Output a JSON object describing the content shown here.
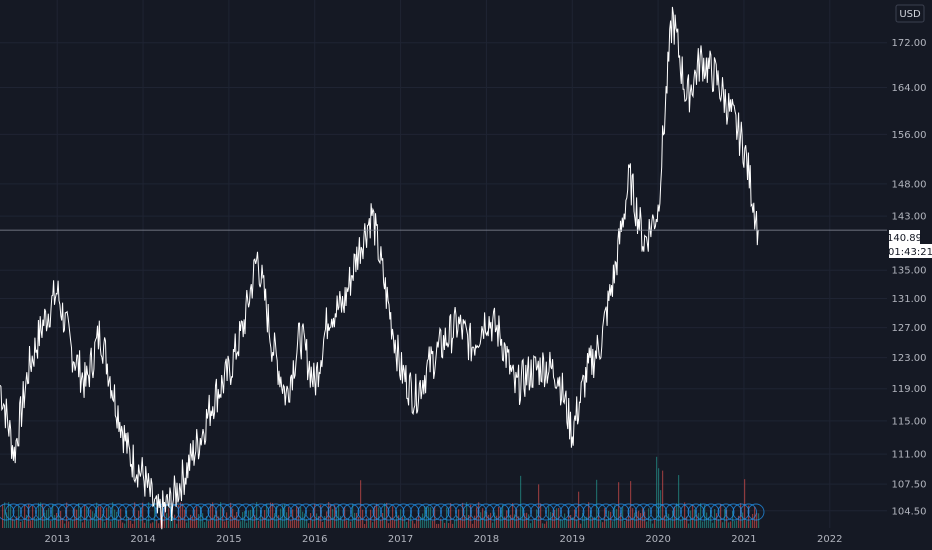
{
  "currency": "USD",
  "current_price_label": "140.89",
  "countdown_label": "01:43:21",
  "colors": {
    "background": "#151924",
    "price_line": "#ffffff",
    "volume_up": "#26a69a",
    "volume_down": "#ef5350",
    "event_circle": "#2196f3"
  },
  "chart_data": {
    "type": "line",
    "title": "",
    "xlabel": "",
    "ylabel": "",
    "y_scale": "log",
    "grid": true,
    "x_range": [
      "2012-05",
      "2022-09"
    ],
    "ylim": [
      102.6,
      180
    ],
    "y_ticks": [
      "104.50",
      "107.50",
      "111.00",
      "115.00",
      "119.00",
      "123.00",
      "127.00",
      "131.00",
      "135.00",
      "143.00",
      "148.00",
      "156.00",
      "164.00",
      "172.00"
    ],
    "x_ticks": [
      "2013",
      "2014",
      "2015",
      "2016",
      "2017",
      "2018",
      "2019",
      "2020",
      "2021",
      "2022"
    ],
    "current_value": 140.89,
    "series": [
      {
        "x": [
          "2012-05",
          "2012-07",
          "2012-09",
          "2012-11",
          "2013-01",
          "2013-03",
          "2013-05",
          "2013-07",
          "2013-09",
          "2013-11",
          "2014-01",
          "2014-03",
          "2014-05",
          "2014-07",
          "2014-09",
          "2014-11",
          "2015-01",
          "2015-03",
          "2015-05",
          "2015-07",
          "2015-09",
          "2015-11",
          "2016-01",
          "2016-03",
          "2016-05",
          "2016-07",
          "2016-09",
          "2016-11",
          "2017-01",
          "2017-03",
          "2017-05",
          "2017-07",
          "2017-09",
          "2017-11",
          "2018-01",
          "2018-03",
          "2018-05",
          "2018-07",
          "2018-09",
          "2018-11",
          "2019-01",
          "2019-03",
          "2019-05",
          "2019-07",
          "2019-09",
          "2019-11",
          "2020-01",
          "2020-03",
          "2020-05",
          "2020-07",
          "2020-09",
          "2020-11",
          "2021-01",
          "2021-03"
        ],
        "values": [
          119.5,
          111.0,
          121.5,
          127.5,
          132.0,
          124.0,
          119.5,
          126.5,
          118.0,
          111.0,
          108.5,
          104.0,
          105.5,
          109.0,
          113.0,
          118.0,
          121.0,
          127.0,
          137.0,
          125.0,
          118.0,
          126.0,
          119.5,
          129.0,
          130.0,
          137.5,
          143.5,
          131.5,
          121.5,
          118.0,
          122.0,
          125.0,
          127.5,
          124.5,
          128.5,
          126.0,
          119.0,
          121.0,
          122.0,
          121.0,
          113.5,
          121.0,
          125.0,
          135.0,
          149.0,
          139.0,
          144.0,
          177.0,
          162.0,
          169.0,
          166.0,
          160.0,
          154.0,
          140.89
        ]
      }
    ]
  }
}
